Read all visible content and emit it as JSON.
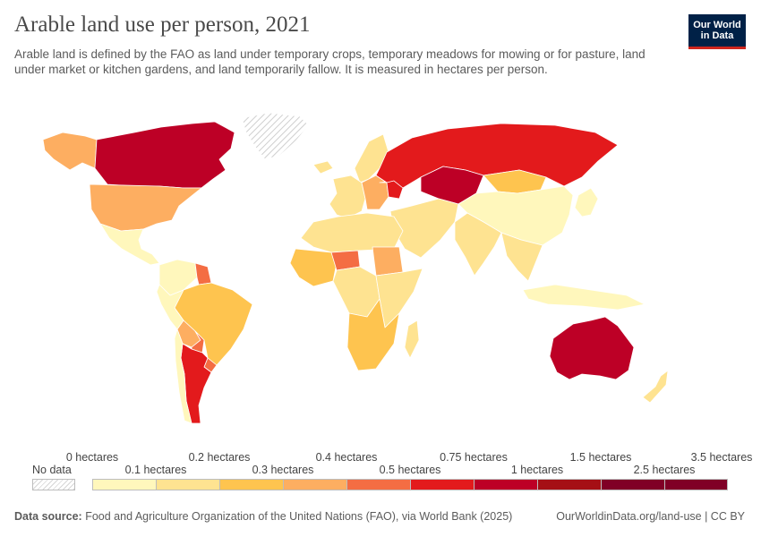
{
  "header": {
    "title": "Arable land use per person, 2021",
    "subtitle": "Arable land is defined by the FAO as land under temporary crops, temporary meadows for mowing or for pasture, land under market or kitchen gardens, and land temporarily fallow. It is measured in hectares per person.",
    "logo_line1": "Our World",
    "logo_line2": "in Data"
  },
  "map": {
    "regions": [
      {
        "name": "Canada",
        "bin": 6
      },
      {
        "name": "Alaska",
        "bin": 3
      },
      {
        "name": "Greenland",
        "bin": -1
      },
      {
        "name": "United States",
        "bin": 3
      },
      {
        "name": "Mexico & Central America",
        "bin": 0
      },
      {
        "name": "Colombia & Venezuela",
        "bin": 0
      },
      {
        "name": "Guyana & Suriname",
        "bin": 4
      },
      {
        "name": "Brazil",
        "bin": 2
      },
      {
        "name": "Peru & Ecuador",
        "bin": 0
      },
      {
        "name": "Bolivia",
        "bin": 3
      },
      {
        "name": "Paraguay",
        "bin": 4
      },
      {
        "name": "Uruguay",
        "bin": 4
      },
      {
        "name": "Argentina",
        "bin": 5
      },
      {
        "name": "Chile",
        "bin": 0
      },
      {
        "name": "Iceland",
        "bin": 1
      },
      {
        "name": "Scandinavia",
        "bin": 1
      },
      {
        "name": "Western Europe",
        "bin": 1
      },
      {
        "name": "Eastern Europe",
        "bin": 3
      },
      {
        "name": "Ukraine",
        "bin": 5
      },
      {
        "name": "Russia",
        "bin": 5
      },
      {
        "name": "Kazakhstan",
        "bin": 6
      },
      {
        "name": "Mongolia",
        "bin": 2
      },
      {
        "name": "China",
        "bin": 0
      },
      {
        "name": "Middle East",
        "bin": 1
      },
      {
        "name": "South Asia",
        "bin": 1
      },
      {
        "name": "Southeast Asia",
        "bin": 1
      },
      {
        "name": "Indonesia",
        "bin": 0
      },
      {
        "name": "Japan & Korea",
        "bin": 0
      },
      {
        "name": "North Africa",
        "bin": 1
      },
      {
        "name": "West Africa",
        "bin": 2
      },
      {
        "name": "Niger",
        "bin": 4
      },
      {
        "name": "Sudan",
        "bin": 3
      },
      {
        "name": "Central Africa",
        "bin": 1
      },
      {
        "name": "East Africa",
        "bin": 1
      },
      {
        "name": "Southern Africa",
        "bin": 2
      },
      {
        "name": "Madagascar",
        "bin": 1
      },
      {
        "name": "Australia",
        "bin": 6
      },
      {
        "name": "New Zealand",
        "bin": 1
      }
    ]
  },
  "legend": {
    "top_labels": [
      "0 hectares",
      "0.2 hectares",
      "0.4 hectares",
      "0.75 hectares",
      "1.5 hectares",
      "3.5 hectares"
    ],
    "bottom_labels": [
      "0.1 hectares",
      "0.3 hectares",
      "0.5 hectares",
      "1 hectares",
      "2.5 hectares"
    ],
    "no_data_label": "No data",
    "colors": [
      "#fff7bc",
      "#fee391",
      "#fec44f",
      "#fdae61",
      "#f46d43",
      "#e31a1c",
      "#bd0026",
      "#a50f15",
      "#800026"
    ]
  },
  "footer": {
    "source_label": "Data source:",
    "source_text": "Food and Agriculture Organization of the United Nations (FAO), via World Bank (2025)",
    "link": "OurWorldinData.org/land-use | CC BY"
  }
}
